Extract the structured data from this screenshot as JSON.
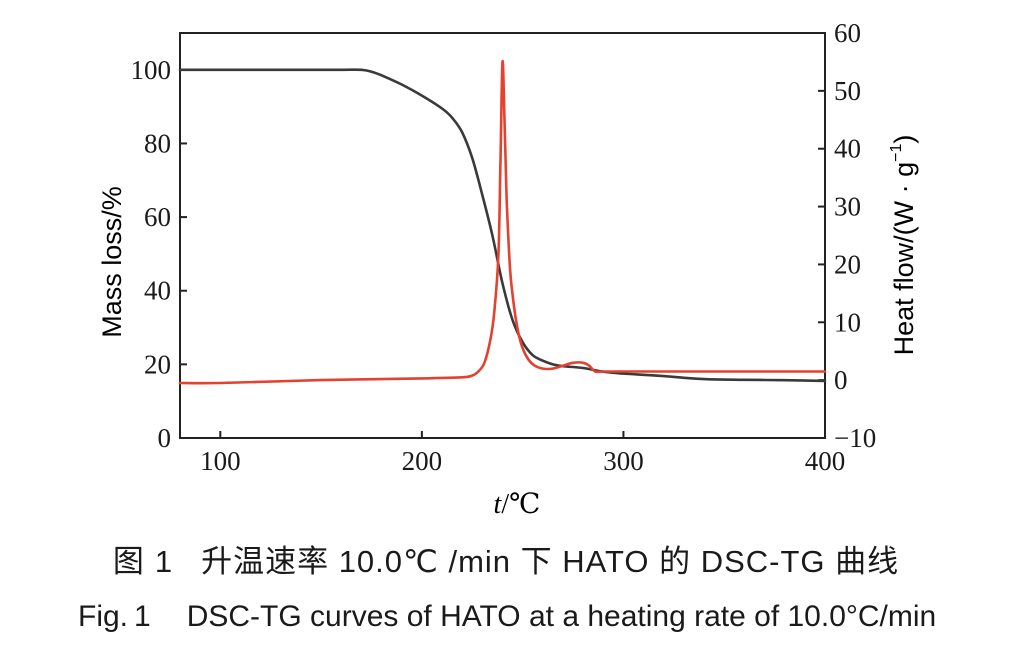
{
  "chart_data": {
    "type": "line",
    "xlabel_italic": "t",
    "xlabel_unit": "/℃",
    "ylabel_left": "Mass loss/%",
    "ylabel_right": "Heat flow/(W · g",
    "ylabel_right_sup": "−1",
    "ylabel_right_close": ")",
    "xlim": [
      80,
      400
    ],
    "ylim_left": [
      0,
      110
    ],
    "ylim_right": [
      -10,
      60
    ],
    "x_ticks": [
      100,
      200,
      300,
      400
    ],
    "y_ticks_left": [
      0,
      20,
      40,
      60,
      80,
      100
    ],
    "y_ticks_right": [
      -10,
      0,
      10,
      20,
      30,
      40,
      50,
      60
    ],
    "y_tick_labels_right": [
      "−10",
      "0",
      "10",
      "20",
      "30",
      "40",
      "50",
      "60"
    ],
    "grid": false,
    "series": [
      {
        "axis": "left",
        "color": "#3a3a3a",
        "x": [
          80,
          100,
          120,
          140,
          160,
          170,
          175,
          180,
          190,
          200,
          210,
          215,
          220,
          225,
          230,
          235,
          240,
          245,
          250,
          255,
          260,
          265,
          270,
          280,
          290,
          300,
          320,
          340,
          360,
          380,
          400
        ],
        "y": [
          100,
          100,
          100,
          100,
          100,
          100,
          99.5,
          98.5,
          96,
          93,
          89.5,
          87,
          83,
          76,
          66,
          55,
          42,
          32,
          26,
          22.5,
          21,
          20,
          19.5,
          19,
          18,
          17.5,
          16.8,
          16,
          15.8,
          15.7,
          15.5
        ]
      },
      {
        "axis": "right",
        "color": "#e5412f",
        "x": [
          80,
          100,
          150,
          200,
          220,
          225,
          228,
          231,
          234,
          236,
          238,
          239,
          240,
          241,
          242,
          243,
          244,
          246,
          248,
          250,
          253,
          256,
          260,
          265,
          270,
          275,
          280,
          283,
          286,
          290,
          300,
          320,
          360,
          400
        ],
        "y": [
          -0.5,
          -0.5,
          0,
          0.3,
          0.5,
          0.8,
          1.5,
          3,
          7,
          12,
          22,
          38,
          55,
          45,
          32,
          24,
          18,
          12,
          8,
          5.5,
          3.5,
          2.5,
          2,
          2,
          2.5,
          3,
          3,
          2.5,
          1.5,
          1.5,
          1.5,
          1.5,
          1.5,
          1.5
        ]
      }
    ]
  },
  "caption_cn": {
    "label": "图",
    "number": "1",
    "text": "升温速率 10.0℃ /min 下 HATO 的 DSC-TG 曲线"
  },
  "caption_en": {
    "label": "Fig.",
    "number": "1",
    "text": "DSC-TG curves of HATO at a heating rate of 10.0°C/min"
  }
}
